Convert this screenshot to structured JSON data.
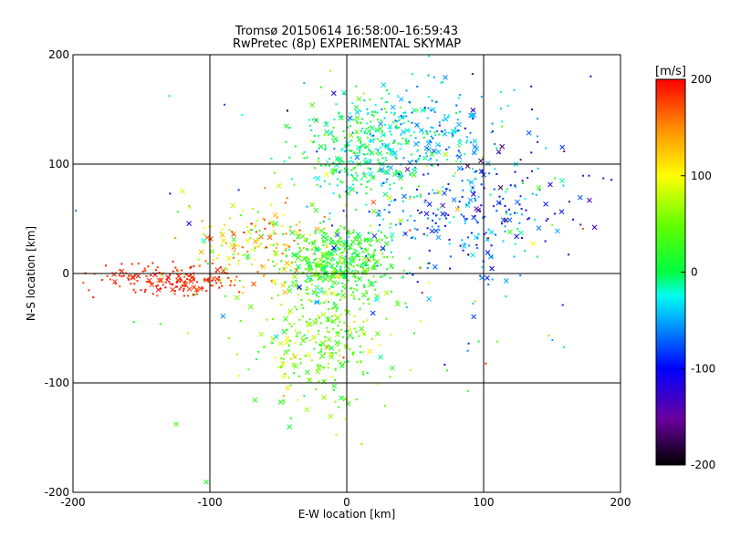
{
  "chart_data": {
    "type": "scatter",
    "title": "Tromsø 20150614 16:58:00–16:59:43",
    "subtitle": "RwPretec (8p) EXPERIMENTAL SKYMAP",
    "xlabel": "E-W location [km]",
    "ylabel": "N-S location [km]",
    "xlim": [
      -200,
      200
    ],
    "ylim": [
      -200,
      200
    ],
    "xticks": [
      -200,
      -100,
      0,
      100,
      200
    ],
    "yticks": [
      -200,
      -100,
      0,
      100,
      200
    ],
    "grid": true,
    "colorbar": {
      "label": "[m/s]",
      "min": -200,
      "max": 200,
      "ticks": [
        200,
        100,
        0,
        -100,
        -200
      ],
      "colormap": "rainbow (black → purple → blue → cyan → green → yellow → red)"
    },
    "markers": {
      "dot": "small dot (dense clusters)",
      "x": "cross"
    },
    "clusters": [
      {
        "description": "western red arm",
        "cx": -125,
        "cy": -5,
        "sx": 25,
        "sy": 8,
        "count": 170,
        "v": 185,
        "vsd": 10
      },
      {
        "description": "central west band",
        "cx": -60,
        "cy": 30,
        "sx": 25,
        "sy": 18,
        "count": 180,
        "v": 110,
        "vsd": 40
      },
      {
        "description": "central core",
        "cx": -5,
        "cy": 10,
        "sx": 20,
        "sy": 18,
        "count": 450,
        "v": 25,
        "vsd": 25
      },
      {
        "description": "north green cluster",
        "cx": 15,
        "cy": 115,
        "sx": 22,
        "sy": 22,
        "count": 300,
        "v": 0,
        "vsd": 25
      },
      {
        "description": "north-east cyan cluster",
        "cx": 60,
        "cy": 130,
        "sx": 25,
        "sy": 22,
        "count": 200,
        "v": -40,
        "vsd": 20
      },
      {
        "description": "east cyan/blue band",
        "cx": 80,
        "cy": 50,
        "sx": 35,
        "sy": 30,
        "count": 230,
        "v": -70,
        "vsd": 35
      },
      {
        "description": "south yellow-green tail",
        "cx": -20,
        "cy": -60,
        "sx": 22,
        "sy": 28,
        "count": 300,
        "v": 50,
        "vsd": 30
      },
      {
        "description": "far east blue/purple",
        "cx": 130,
        "cy": 80,
        "sx": 30,
        "sy": 40,
        "count": 60,
        "v": -120,
        "vsd": 35
      },
      {
        "description": "scattered background",
        "cx": 0,
        "cy": 20,
        "sx": 90,
        "sy": 80,
        "count": 120,
        "v": 20,
        "vsd": 90
      }
    ]
  }
}
